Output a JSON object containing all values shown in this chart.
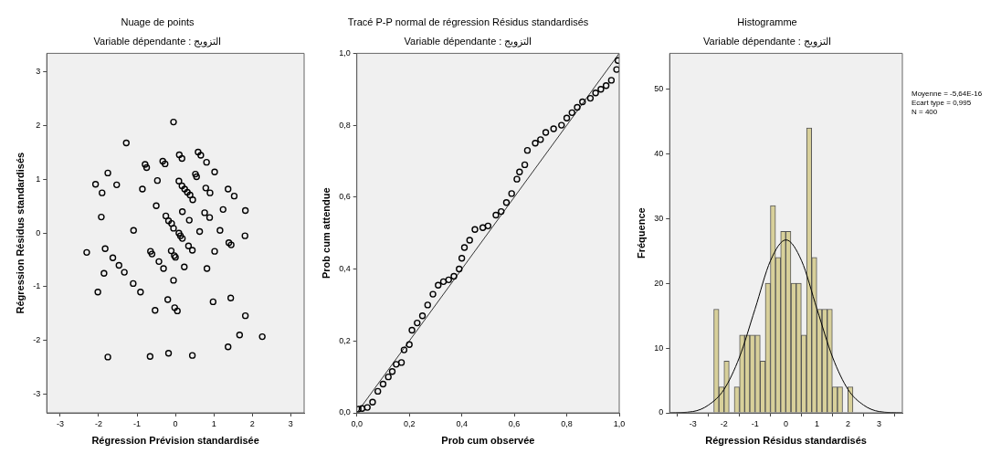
{
  "chart_data": [
    {
      "type": "scatter",
      "title": "Nuage de points",
      "subtitle": "Variable dépendante : التزويج",
      "xlabel": "Régression Prévision standardisée",
      "ylabel": "Régression Résidus standardisés",
      "marker": "circle",
      "color": "#000000",
      "x": [
        -0.05,
        -1.28,
        -2.08,
        -1.91,
        -1.76,
        -1.53,
        -0.79,
        -0.75,
        -0.33,
        -0.27,
        0.1,
        0.17,
        0.59,
        0.66,
        0.81,
        1.02,
        0.52,
        0.55,
        -0.86,
        -0.47,
        0.09,
        0.17,
        0.24,
        0.31,
        0.38,
        0.45,
        0.79,
        0.9,
        1.37,
        1.53,
        -0.5,
        0.18,
        0.36,
        0.76,
        0.89,
        1.24,
        1.82,
        -1.93,
        -0.25,
        -0.18,
        -0.1,
        -0.05,
        -1.09,
        0.63,
        1.16,
        0.09,
        0.13,
        0.18,
        1.81,
        1.39,
        1.45,
        -2.31,
        -1.83,
        -1.63,
        -1.47,
        -1.33,
        -1.86,
        -0.65,
        -0.61,
        -0.43,
        -0.31,
        -0.11,
        -0.03,
        0.0,
        0.34,
        0.44,
        0.23,
        1.02,
        0.82,
        -0.05,
        -1.1,
        -0.91,
        -2.02,
        -0.2,
        -0.02,
        0.05,
        -0.53,
        0.98,
        1.44,
        1.82,
        1.67,
        2.26,
        1.37,
        -1.76,
        -0.66,
        -0.18,
        0.44
      ],
      "values": [
        2.07,
        1.68,
        0.91,
        0.75,
        1.12,
        0.9,
        1.28,
        1.22,
        1.34,
        1.29,
        1.46,
        1.39,
        1.51,
        1.45,
        1.32,
        1.14,
        1.1,
        1.05,
        0.82,
        0.98,
        0.97,
        0.88,
        0.82,
        0.76,
        0.71,
        0.62,
        0.84,
        0.75,
        0.82,
        0.69,
        0.51,
        0.4,
        0.24,
        0.38,
        0.29,
        0.44,
        0.42,
        0.3,
        0.32,
        0.23,
        0.18,
        0.09,
        0.05,
        0.03,
        0.05,
        0.0,
        -0.05,
        -0.1,
        -0.05,
        -0.18,
        -0.22,
        -0.36,
        -0.29,
        -0.46,
        -0.6,
        -0.73,
        -0.75,
        -0.34,
        -0.39,
        -0.53,
        -0.66,
        -0.33,
        -0.42,
        -0.45,
        -0.24,
        -0.32,
        -0.63,
        -0.34,
        -0.66,
        -0.88,
        -0.94,
        -1.1,
        -1.1,
        -1.24,
        -1.39,
        -1.45,
        -1.44,
        -1.28,
        -1.21,
        -1.54,
        -1.9,
        -1.93,
        -2.12,
        -2.31,
        -2.3,
        -2.24,
        -2.28
      ],
      "xlim": [
        -3.35,
        3.35
      ],
      "ylim": [
        -3.35,
        3.35
      ],
      "xticks": [
        -3,
        -2,
        -1,
        0,
        1,
        2,
        3
      ],
      "yticks": [
        -3,
        -2,
        -1,
        0,
        1,
        2,
        3
      ]
    },
    {
      "type": "scatter",
      "title": "Tracé P-P normal de régression Résidus standardisés",
      "subtitle": "Variable dépendante : التزويج",
      "xlabel": "Prob cum observée",
      "ylabel": "Prob cum attendue",
      "series": [
        {
          "type": "scatter",
          "marker": "circle",
          "color": "#000000",
          "x": [
            0.005,
            0.02,
            0.04,
            0.06,
            0.08,
            0.1,
            0.12,
            0.135,
            0.15,
            0.17,
            0.18,
            0.2,
            0.21,
            0.23,
            0.25,
            0.27,
            0.29,
            0.31,
            0.33,
            0.35,
            0.37,
            0.39,
            0.4,
            0.41,
            0.43,
            0.45,
            0.48,
            0.5,
            0.53,
            0.55,
            0.57,
            0.59,
            0.61,
            0.62,
            0.64,
            0.65,
            0.68,
            0.7,
            0.72,
            0.75,
            0.78,
            0.8,
            0.82,
            0.84,
            0.86,
            0.89,
            0.91,
            0.93,
            0.95,
            0.97,
            0.99,
            0.995
          ],
          "values": [
            0.01,
            0.012,
            0.015,
            0.03,
            0.06,
            0.08,
            0.1,
            0.115,
            0.135,
            0.14,
            0.175,
            0.19,
            0.23,
            0.25,
            0.27,
            0.3,
            0.33,
            0.355,
            0.365,
            0.37,
            0.38,
            0.4,
            0.43,
            0.46,
            0.48,
            0.51,
            0.515,
            0.52,
            0.55,
            0.56,
            0.585,
            0.61,
            0.65,
            0.67,
            0.69,
            0.73,
            0.75,
            0.76,
            0.78,
            0.79,
            0.8,
            0.82,
            0.835,
            0.85,
            0.865,
            0.875,
            0.89,
            0.9,
            0.91,
            0.925,
            0.955,
            0.98
          ]
        },
        {
          "type": "line",
          "marker": "none",
          "color": "#333333",
          "x": [
            0,
            1
          ],
          "values": [
            0,
            1
          ]
        }
      ],
      "xlim": [
        0,
        1
      ],
      "ylim": [
        0,
        1
      ],
      "xticks": [
        {
          "value": 0,
          "label": "0,0"
        },
        {
          "value": 0.2,
          "label": "0,2"
        },
        {
          "value": 0.4,
          "label": "0,4"
        },
        {
          "value": 0.6,
          "label": "0,6"
        },
        {
          "value": 0.8,
          "label": "0,8"
        },
        {
          "value": 1,
          "label": "1,0"
        }
      ],
      "yticks": [
        {
          "value": 0,
          "label": "0,0"
        },
        {
          "value": 0.2,
          "label": "0,2"
        },
        {
          "value": 0.4,
          "label": "0,4"
        },
        {
          "value": 0.6,
          "label": "0,6"
        },
        {
          "value": 0.8,
          "label": "0,8"
        },
        {
          "value": 1,
          "label": "1,0"
        }
      ]
    },
    {
      "type": "histogram",
      "title": "Histogramme",
      "subtitle": "Variable dépendante : التزويج",
      "xlabel": "Régression Résidus standardisés",
      "ylabel": "Fréquence",
      "color": "#d8d09a",
      "bins": [
        -2.33,
        -2.16,
        -2.0,
        -1.83,
        -1.67,
        -1.5,
        -1.33,
        -1.17,
        -1.0,
        -0.83,
        -0.67,
        -0.5,
        -0.34,
        -0.17,
        -0.01,
        0.16,
        0.33,
        0.49,
        0.66,
        0.83,
        0.99,
        1.16,
        1.33,
        1.49,
        1.66,
        1.82,
        1.99,
        2.16
      ],
      "values": [
        16,
        4,
        8,
        0,
        4,
        12,
        12,
        12,
        12,
        8,
        20,
        32,
        24,
        28,
        28,
        20,
        20,
        12,
        44,
        24,
        16,
        16,
        16,
        4,
        4,
        0,
        4
      ],
      "series": [
        {
          "type": "line",
          "marker": "none",
          "color": "#000000",
          "x": [
            -3.75,
            -3,
            -2.5,
            -2,
            -1.5,
            -1,
            -0.5,
            0,
            0.5,
            1,
            1.5,
            2,
            2.5,
            3,
            3.75
          ],
          "values": [
            0,
            0.2,
            1.2,
            3.6,
            8.6,
            16,
            23.5,
            26.7,
            23.5,
            16,
            8.6,
            3.6,
            1.2,
            0.2,
            0
          ]
        }
      ],
      "xlim": [
        -3.75,
        3.75
      ],
      "ylim": [
        0,
        55.5
      ],
      "xticks": [
        -3,
        -2,
        -1,
        0,
        1,
        2,
        3
      ],
      "yticks": [
        0,
        10,
        20,
        30,
        40,
        50
      ],
      "annotations": [
        "Moyenne = -5,64E-16",
        "Ecart type = 0,995",
        "N = 400"
      ]
    }
  ]
}
